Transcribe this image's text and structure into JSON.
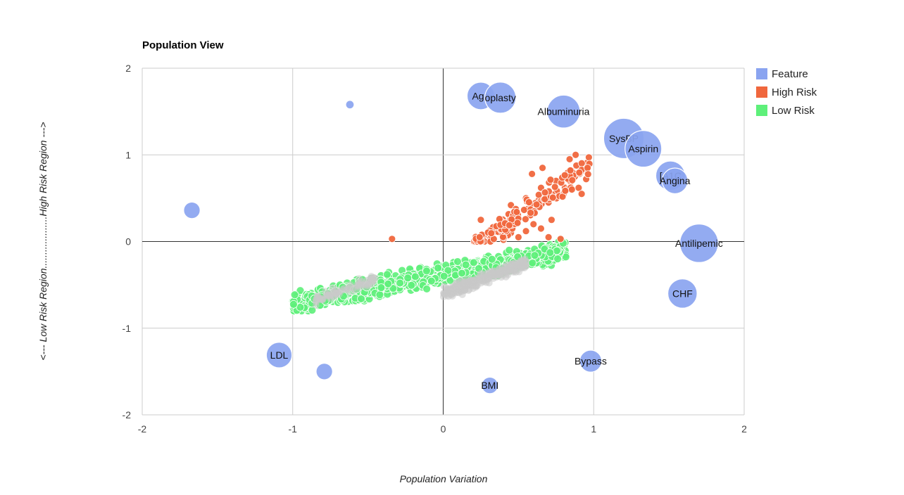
{
  "chart_data": {
    "type": "bubble",
    "title": "Population View",
    "xlabel": "Population Variation",
    "ylabel": "<--- Low Risk Region...................High Risk Region --->",
    "xlim": [
      -2,
      2
    ],
    "ylim": [
      -2,
      2
    ],
    "x_ticks": [
      -2,
      -1,
      0,
      1,
      2
    ],
    "y_ticks": [
      -2,
      -1,
      0,
      1,
      2
    ],
    "grid": true,
    "legend_position": "right",
    "legend": [
      {
        "name": "Feature",
        "color": "#8aa4f0"
      },
      {
        "name": "High Risk",
        "color": "#f0673d"
      },
      {
        "name": "Low Risk",
        "color": "#5ef07a"
      }
    ],
    "features": [
      {
        "label": "",
        "x": -0.62,
        "y": 1.58,
        "size": 0.2
      },
      {
        "label": "",
        "x": -1.67,
        "y": 0.36,
        "size": 0.45
      },
      {
        "label": "LDL",
        "x": -1.09,
        "y": -1.31,
        "size": 0.7
      },
      {
        "label": "",
        "x": -0.79,
        "y": -1.5,
        "size": 0.45
      },
      {
        "label": "Age",
        "x": 0.25,
        "y": 1.68,
        "size": 0.75
      },
      {
        "label": "oplasty",
        "x": 0.38,
        "y": 1.66,
        "size": 0.85
      },
      {
        "label": "Albuminuria",
        "x": 0.8,
        "y": 1.5,
        "size": 0.9
      },
      {
        "label": "SysBP",
        "x": 1.2,
        "y": 1.19,
        "size": 1.1
      },
      {
        "label": "Aspirin",
        "x": 1.33,
        "y": 1.07,
        "size": 1.0
      },
      {
        "label": "[A1C",
        "x": 1.51,
        "y": 0.76,
        "size": 0.8
      },
      {
        "label": "Angina",
        "x": 1.54,
        "y": 0.7,
        "size": 0.7
      },
      {
        "label": "Antilipemic",
        "x": 1.7,
        "y": -0.02,
        "size": 1.05
      },
      {
        "label": "CHF",
        "x": 1.59,
        "y": -0.6,
        "size": 0.8
      },
      {
        "label": "Bypass",
        "x": 0.98,
        "y": -1.38,
        "size": 0.6
      },
      {
        "label": "BMI",
        "x": 0.31,
        "y": -1.66,
        "size": 0.45
      }
    ],
    "high_risk_cloud": {
      "description_points": [
        [
          -0.34,
          0.03
        ],
        [
          0.25,
          0.25
        ],
        [
          0.35,
          0.13
        ],
        [
          0.4,
          0.2
        ],
        [
          0.45,
          0.42
        ],
        [
          0.5,
          0.3
        ],
        [
          0.55,
          0.5
        ],
        [
          0.6,
          0.35
        ],
        [
          0.65,
          0.62
        ],
        [
          0.7,
          0.45
        ],
        [
          0.75,
          0.7
        ],
        [
          0.8,
          0.55
        ],
        [
          0.85,
          0.8
        ],
        [
          0.9,
          0.62
        ],
        [
          0.95,
          0.72
        ],
        [
          0.59,
          0.78
        ],
        [
          0.66,
          0.85
        ],
        [
          0.88,
          1.0
        ],
        [
          0.84,
          0.95
        ],
        [
          0.92,
          0.55
        ],
        [
          0.45,
          0.1
        ],
        [
          0.55,
          0.12
        ],
        [
          0.6,
          0.2
        ],
        [
          0.72,
          0.25
        ],
        [
          0.78,
          0.03
        ],
        [
          0.7,
          0.05
        ],
        [
          0.65,
          0.15
        ],
        [
          0.5,
          0.05
        ],
        [
          0.4,
          0.02
        ],
        [
          0.3,
          0.04
        ]
      ],
      "generated": {
        "count": 150,
        "x_range": [
          0.2,
          0.98
        ],
        "center_line": {
          "x0": 0.2,
          "y0": -0.05,
          "x1": 0.95,
          "y1": 0.85
        },
        "spread": 0.22
      }
    },
    "low_risk_cloud": {
      "generated": {
        "count": 900,
        "x_range": [
          -1.0,
          0.82
        ],
        "center_line": {
          "x0": -1.0,
          "y0": -0.72,
          "x1": 0.82,
          "y1": -0.1
        },
        "spread": 0.2
      }
    }
  }
}
